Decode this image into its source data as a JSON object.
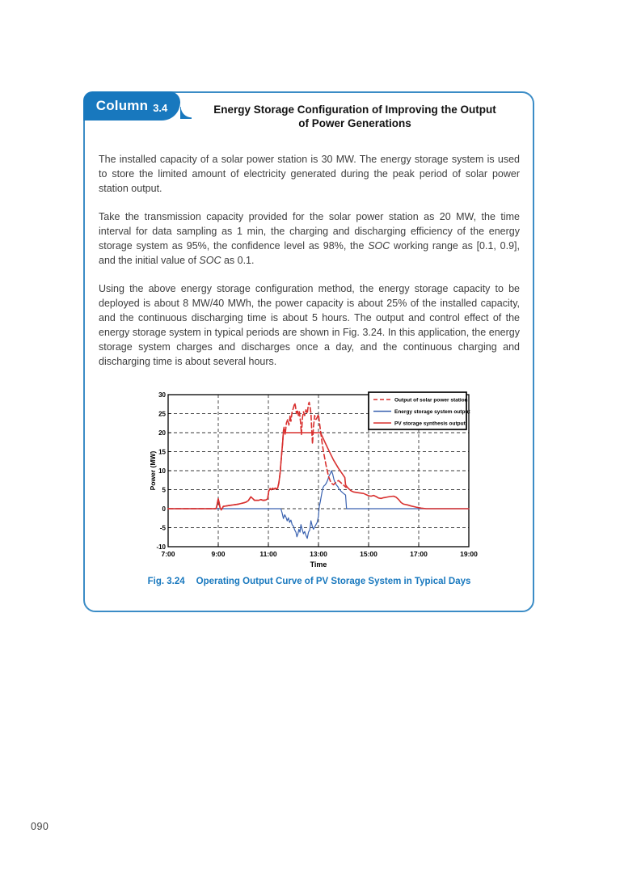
{
  "page": {
    "number": "090"
  },
  "colors": {
    "accent_blue": "#1878be",
    "panel_border_blue": "#3b8cc6",
    "line_red": "#d8302f",
    "line_blue": "#3a62b0"
  },
  "panel": {
    "badge": {
      "label": "Column",
      "number": "3.4"
    },
    "title_line1": "Energy Storage Configuration of Improving the Output",
    "title_line2": "of Power Generations",
    "paragraphs": {
      "p1": "The installed capacity of a solar power station is 30 MW. The energy storage system is used to store the limited amount of electricity generated during the peak period of solar power station output.",
      "p2_parts": [
        "Take the transmission capacity provided for the solar power station as 20 MW, the time interval for data sampling as 1 min, the charging and discharging efficiency of the energy storage system as 95%, the confidence level as 98%, the ",
        "SOC",
        " working range as [0.1, 0.9], and the initial value of ",
        "SOC",
        " as 0.1."
      ],
      "p3": "Using the above energy storage configuration method, the energy storage capacity to be deployed is about 8 MW/40 MWh, the power capacity is about 25% of the installed capacity, and the continuous discharging time is about 5 hours. The output and control effect of the energy storage system in typical periods are shown in Fig. 3.24. In this application, the energy storage system charges and discharges once a day, and the continuous charging and discharging time is about several hours."
    },
    "caption": {
      "label": "Fig. 3.24",
      "text": "Operating Output Curve of PV Storage System in Typical Days"
    }
  },
  "chart_data": {
    "type": "line",
    "title": "",
    "xlabel": "Time",
    "ylabel": "Power (MW)",
    "x_tick_labels": [
      "7:00",
      "9:00",
      "11:00",
      "13:00",
      "15:00",
      "17:00",
      "19:00"
    ],
    "x_tick_hours": [
      7,
      9,
      11,
      13,
      15,
      17,
      19
    ],
    "x_grid_hours": [
      9,
      11,
      13,
      15,
      17
    ],
    "y_ticks": [
      -10,
      -5,
      0,
      5,
      10,
      15,
      20,
      25,
      30
    ],
    "y_grid": [
      -5,
      0,
      5,
      10,
      15,
      20,
      25
    ],
    "xlim_hours": [
      7,
      19
    ],
    "ylim": [
      -10,
      30
    ],
    "grid": "dashed",
    "legend_position": "top-right",
    "draw_order": [
      1,
      2,
      0
    ],
    "series": [
      {
        "name": "Output of solar power station",
        "color": "#d8302f",
        "style": "dashed",
        "points": [
          [
            7,
            0
          ],
          [
            8.9,
            0
          ],
          [
            8.93,
            0.3
          ],
          [
            9.0,
            2.6
          ],
          [
            9.03,
            1.8
          ],
          [
            9.07,
            0.3
          ],
          [
            9.12,
            -0.3
          ],
          [
            9.17,
            0.2
          ],
          [
            9.2,
            0.6
          ],
          [
            9.4,
            0.8
          ],
          [
            9.6,
            1.0
          ],
          [
            9.8,
            1.2
          ],
          [
            10.0,
            1.5
          ],
          [
            10.1,
            1.7
          ],
          [
            10.2,
            2.1
          ],
          [
            10.3,
            3.1
          ],
          [
            10.37,
            2.7
          ],
          [
            10.45,
            2.2
          ],
          [
            10.6,
            2.2
          ],
          [
            10.7,
            2.4
          ],
          [
            10.8,
            2.2
          ],
          [
            10.9,
            2.3
          ],
          [
            10.97,
            2.6
          ],
          [
            11.02,
            4.7
          ],
          [
            11.07,
            5.3
          ],
          [
            11.12,
            5.0
          ],
          [
            11.17,
            5.4
          ],
          [
            11.22,
            5.1
          ],
          [
            11.27,
            5.4
          ],
          [
            11.32,
            5.2
          ],
          [
            11.37,
            5.4
          ],
          [
            11.42,
            6.8
          ],
          [
            11.47,
            9.5
          ],
          [
            11.52,
            13.5
          ],
          [
            11.57,
            17.5
          ],
          [
            11.6,
            20.5
          ],
          [
            11.63,
            21.5
          ],
          [
            11.67,
            19.5
          ],
          [
            11.72,
            22.5
          ],
          [
            11.77,
            23.5
          ],
          [
            11.82,
            22.0
          ],
          [
            11.87,
            24.5
          ],
          [
            11.9,
            23.0
          ],
          [
            11.95,
            25.5
          ],
          [
            12.0,
            26.5
          ],
          [
            12.05,
            27.8
          ],
          [
            12.08,
            27.0
          ],
          [
            12.12,
            25.0
          ],
          [
            12.16,
            26.0
          ],
          [
            12.2,
            24.5
          ],
          [
            12.24,
            25.5
          ],
          [
            12.28,
            23.0
          ],
          [
            12.32,
            19.5
          ],
          [
            12.36,
            24.0
          ],
          [
            12.4,
            25.5
          ],
          [
            12.45,
            24.5
          ],
          [
            12.5,
            26.0
          ],
          [
            12.55,
            25.0
          ],
          [
            12.6,
            27.5
          ],
          [
            12.63,
            28.0
          ],
          [
            12.67,
            26.5
          ],
          [
            12.7,
            25.0
          ],
          [
            12.73,
            21.0
          ],
          [
            12.76,
            17.0
          ],
          [
            12.8,
            21.5
          ],
          [
            12.85,
            24.5
          ],
          [
            12.9,
            23.5
          ],
          [
            12.95,
            24.0
          ],
          [
            13.0,
            24.8
          ],
          [
            13.05,
            22.0
          ],
          [
            13.1,
            19.5
          ],
          [
            13.15,
            17.0
          ],
          [
            13.2,
            15.0
          ],
          [
            13.3,
            11.5
          ],
          [
            13.4,
            8.5
          ],
          [
            13.5,
            6.8
          ],
          [
            13.6,
            6.3
          ],
          [
            13.7,
            7.0
          ],
          [
            13.8,
            7.4
          ],
          [
            13.9,
            6.8
          ],
          [
            14.0,
            6.2
          ],
          [
            14.1,
            5.6
          ]
        ]
      },
      {
        "name": "Energy storage system output",
        "color": "#3a62b0",
        "style": "solid",
        "points": [
          [
            7,
            0
          ],
          [
            11.5,
            0
          ],
          [
            11.55,
            -1.2
          ],
          [
            11.6,
            -2.6
          ],
          [
            11.65,
            -1.6
          ],
          [
            11.7,
            -2.2
          ],
          [
            11.75,
            -3.2
          ],
          [
            11.8,
            -2.4
          ],
          [
            11.85,
            -3.6
          ],
          [
            11.9,
            -3.0
          ],
          [
            11.95,
            -4.2
          ],
          [
            12.0,
            -4.6
          ],
          [
            12.05,
            -5.6
          ],
          [
            12.1,
            -6.2
          ],
          [
            12.14,
            -7.4
          ],
          [
            12.18,
            -6.6
          ],
          [
            12.22,
            -5.4
          ],
          [
            12.26,
            -6.2
          ],
          [
            12.3,
            -4.2
          ],
          [
            12.34,
            -5.2
          ],
          [
            12.4,
            -6.6
          ],
          [
            12.45,
            -6.0
          ],
          [
            12.5,
            -7.0
          ],
          [
            12.55,
            -7.8
          ],
          [
            12.6,
            -6.2
          ],
          [
            12.65,
            -5.6
          ],
          [
            12.7,
            -3.2
          ],
          [
            12.75,
            -4.6
          ],
          [
            12.8,
            -5.4
          ],
          [
            12.85,
            -4.8
          ],
          [
            12.9,
            -4.2
          ],
          [
            12.95,
            -3.6
          ],
          [
            13.0,
            -2.0
          ],
          [
            13.03,
            0.5
          ],
          [
            13.07,
            1.8
          ],
          [
            13.12,
            3.6
          ],
          [
            13.17,
            5.4
          ],
          [
            13.22,
            6.0
          ],
          [
            13.27,
            6.3
          ],
          [
            13.32,
            6.8
          ],
          [
            13.37,
            7.6
          ],
          [
            13.42,
            8.6
          ],
          [
            13.47,
            9.2
          ],
          [
            13.52,
            10.0
          ],
          [
            13.57,
            9.0
          ],
          [
            13.62,
            7.6
          ],
          [
            13.67,
            6.8
          ],
          [
            13.72,
            6.2
          ],
          [
            13.77,
            5.8
          ],
          [
            13.82,
            5.2
          ],
          [
            13.9,
            4.6
          ],
          [
            14.0,
            4.0
          ],
          [
            14.08,
            3.6
          ],
          [
            14.12,
            0
          ],
          [
            19,
            0
          ]
        ]
      },
      {
        "name": "PV storage synthesis output",
        "color": "#d8302f",
        "style": "solid",
        "points": [
          [
            7,
            0
          ],
          [
            8.9,
            0
          ],
          [
            8.93,
            0.3
          ],
          [
            9.0,
            2.6
          ],
          [
            9.03,
            1.8
          ],
          [
            9.07,
            0.3
          ],
          [
            9.12,
            -0.3
          ],
          [
            9.17,
            0.2
          ],
          [
            9.2,
            0.6
          ],
          [
            9.4,
            0.8
          ],
          [
            9.6,
            1.0
          ],
          [
            9.8,
            1.2
          ],
          [
            10.0,
            1.5
          ],
          [
            10.1,
            1.7
          ],
          [
            10.2,
            2.1
          ],
          [
            10.3,
            3.1
          ],
          [
            10.37,
            2.7
          ],
          [
            10.45,
            2.2
          ],
          [
            10.6,
            2.2
          ],
          [
            10.7,
            2.4
          ],
          [
            10.8,
            2.2
          ],
          [
            10.9,
            2.3
          ],
          [
            10.97,
            2.6
          ],
          [
            11.02,
            4.7
          ],
          [
            11.07,
            5.3
          ],
          [
            11.12,
            5.0
          ],
          [
            11.17,
            5.4
          ],
          [
            11.22,
            5.1
          ],
          [
            11.27,
            5.4
          ],
          [
            11.32,
            5.2
          ],
          [
            11.37,
            5.4
          ],
          [
            11.42,
            6.8
          ],
          [
            11.47,
            9.5
          ],
          [
            11.52,
            13.5
          ],
          [
            11.57,
            17.5
          ],
          [
            11.6,
            20.0
          ],
          [
            13.08,
            20.0
          ],
          [
            13.2,
            18.3
          ],
          [
            13.4,
            15.5
          ],
          [
            13.6,
            12.8
          ],
          [
            13.8,
            10.6
          ],
          [
            13.95,
            9.2
          ],
          [
            14.05,
            8.2
          ],
          [
            14.08,
            6.3
          ],
          [
            14.12,
            5.9
          ],
          [
            14.2,
            5.3
          ],
          [
            14.3,
            4.7
          ],
          [
            14.4,
            4.4
          ],
          [
            14.6,
            4.2
          ],
          [
            14.8,
            4.0
          ],
          [
            15.0,
            3.4
          ],
          [
            15.1,
            3.3
          ],
          [
            15.2,
            3.5
          ],
          [
            15.3,
            3.2
          ],
          [
            15.4,
            2.8
          ],
          [
            15.5,
            2.7
          ],
          [
            15.6,
            2.9
          ],
          [
            15.7,
            3.0
          ],
          [
            15.85,
            3.2
          ],
          [
            16.0,
            3.3
          ],
          [
            16.1,
            3.0
          ],
          [
            16.2,
            2.4
          ],
          [
            16.3,
            1.6
          ],
          [
            16.4,
            1.2
          ],
          [
            16.55,
            1.0
          ],
          [
            16.7,
            0.7
          ],
          [
            16.9,
            0.4
          ],
          [
            17.1,
            0.15
          ],
          [
            17.3,
            0
          ],
          [
            19,
            0
          ]
        ]
      }
    ]
  }
}
